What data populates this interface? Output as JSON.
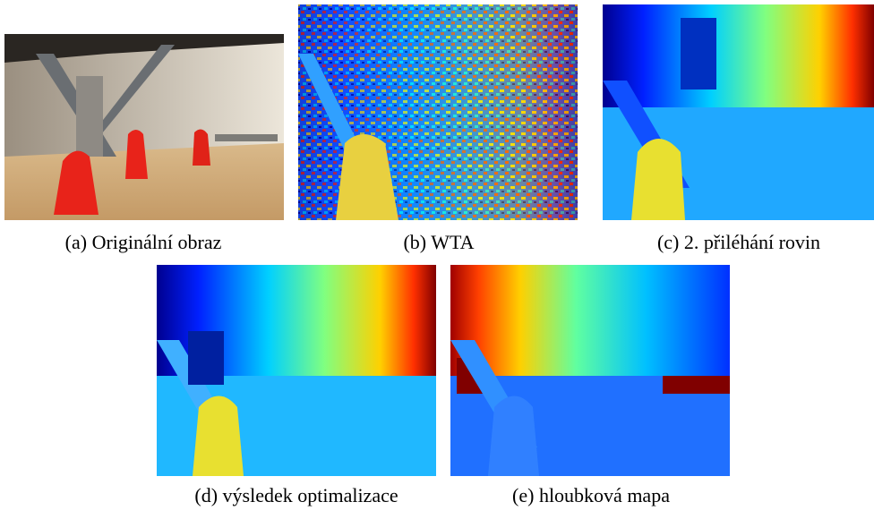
{
  "figures": [
    {
      "label": "(a)",
      "caption": "Originální obraz"
    },
    {
      "label": "(b)",
      "caption": "WTA"
    },
    {
      "label": "(c)",
      "caption": "2. přiléhání rovin"
    },
    {
      "label": "(d)",
      "caption": "výsledek optimalizace"
    },
    {
      "label": "(e)",
      "caption": "hloubková mapa"
    }
  ]
}
